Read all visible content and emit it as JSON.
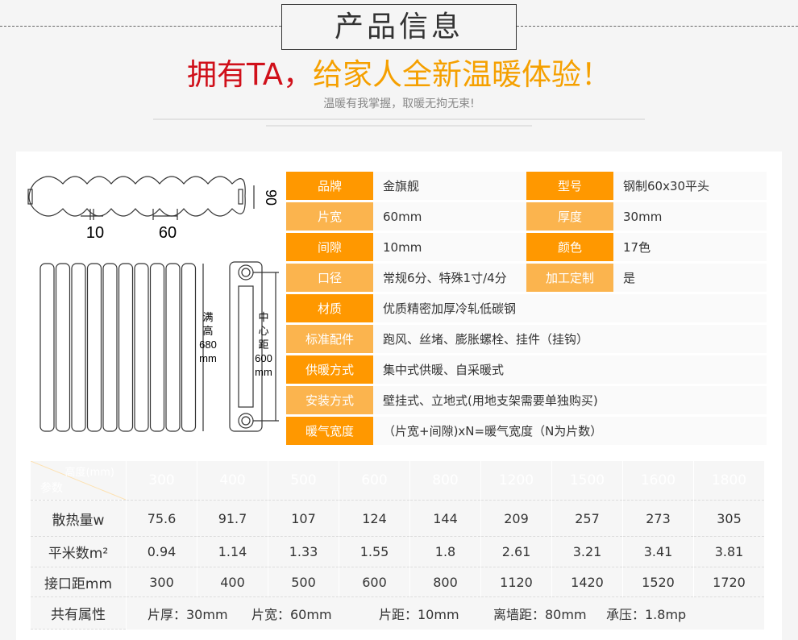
{
  "header": {
    "title": "产品信息",
    "slogan_red": "拥有TA，",
    "slogan_orange": "给家人全新温暖体验！",
    "subtitle": "温暖有我掌握，取暖无拘无束!"
  },
  "diagram": {
    "gap": "10",
    "width": "60",
    "depth": "90",
    "total_height": [
      "满",
      "高",
      "680",
      "mm"
    ],
    "center_distance": [
      "中",
      "心",
      "距",
      "600",
      "mm"
    ]
  },
  "specs": [
    {
      "label": "品牌",
      "value": "金旗舰",
      "label2": "型号",
      "value2": "钢制60x30平头"
    },
    {
      "label": "片宽",
      "value": "60mm",
      "label2": "厚度",
      "value2": "30mm"
    },
    {
      "label": "间隙",
      "value": "10mm",
      "label2": "颜色",
      "value2": "17色"
    },
    {
      "label": "口径",
      "value": "常规6分、特殊1寸/4分",
      "label2": "加工定制",
      "value2": "是"
    },
    {
      "label": "材质",
      "value": "优质精密加厚冷轧低碳钢"
    },
    {
      "label": "标准配件",
      "value": "跑风、丝堵、膨胀螺栓、挂件（挂钩）"
    },
    {
      "label": "供暖方式",
      "value": "集中式供暖、自采暖式"
    },
    {
      "label": "安装方式",
      "value": "壁挂式、立地式(用地支架需要单独购买)"
    },
    {
      "label": "暖气宽度",
      "value": "（片宽+间隙)xN=暖气宽度（N为片数）"
    }
  ],
  "params": {
    "corner_top": "高度(mm)",
    "corner_bottom": "参数",
    "heights": [
      "300",
      "400",
      "500",
      "600",
      "800",
      "1200",
      "1500",
      "1600",
      "1800"
    ],
    "rows": [
      {
        "label": "散热量w",
        "values": [
          "75.6",
          "91.7",
          "107",
          "124",
          "144",
          "209",
          "257",
          "273",
          "305"
        ]
      },
      {
        "label": "平米数m²",
        "values": [
          "0.94",
          "1.14",
          "1.33",
          "1.55",
          "1.8",
          "2.61",
          "3.21",
          "3.41",
          "3.81"
        ]
      },
      {
        "label": "接口距mm",
        "values": [
          "300",
          "400",
          "500",
          "600",
          "800",
          "1120",
          "1420",
          "1520",
          "1720"
        ]
      }
    ],
    "common_label": "共有属性",
    "common": [
      "片厚：30mm",
      "片宽：60mm",
      "片距：10mm",
      "离墙距：80mm",
      "承压：1.8mp"
    ]
  },
  "colors": {
    "orange_dark": "#ff9800",
    "orange_light": "#fbb44e",
    "red": "#d0101a"
  }
}
